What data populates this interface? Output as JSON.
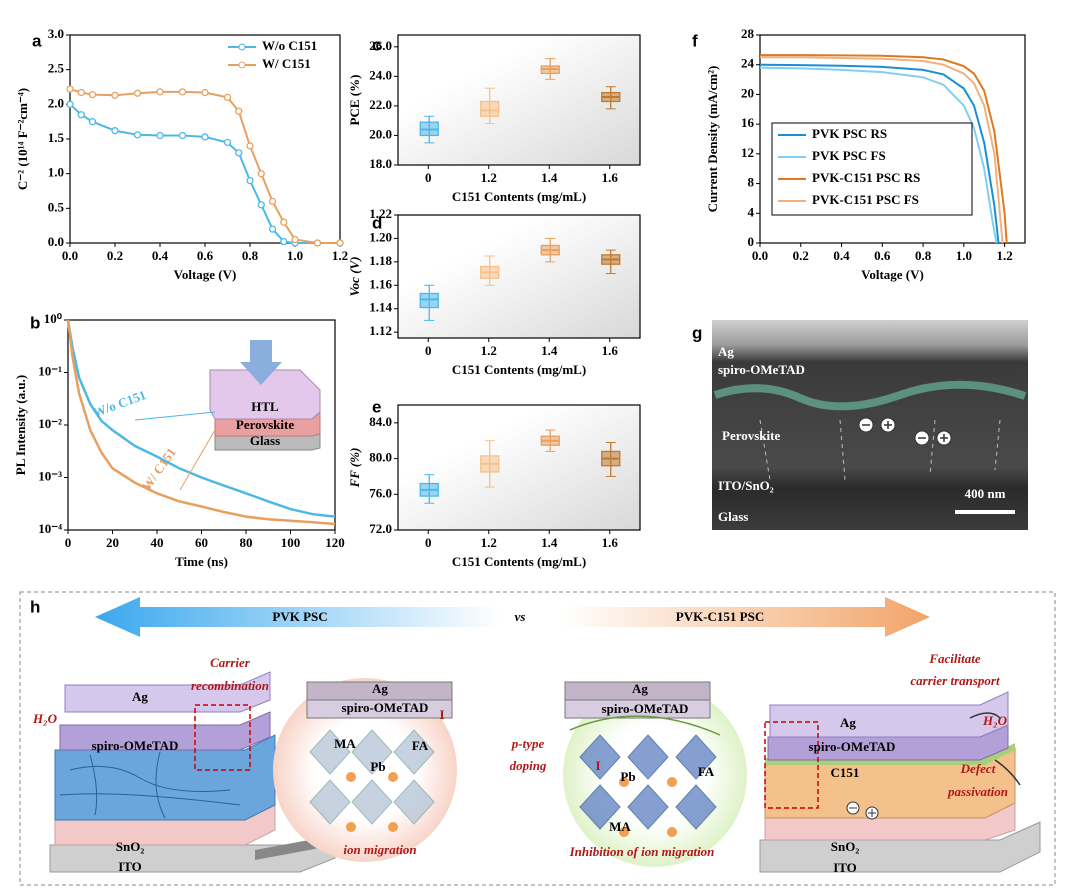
{
  "chart_data": [
    {
      "panel": "a",
      "type": "line",
      "x_label": "Voltage (V)",
      "y_label": "C⁻² (10¹⁴ F⁻²cm⁻⁴)",
      "x": [
        0,
        0.05,
        0.1,
        0.2,
        0.3,
        0.4,
        0.5,
        0.6,
        0.7,
        0.75,
        0.8,
        0.85,
        0.9,
        0.95,
        1.0,
        1.1,
        1.2
      ],
      "series": [
        {
          "name": "W/o C151",
          "color": "#4db8e8",
          "values": [
            2.0,
            1.85,
            1.75,
            1.62,
            1.56,
            1.55,
            1.55,
            1.53,
            1.45,
            1.3,
            0.9,
            0.55,
            0.2,
            0.02,
            0,
            0,
            0
          ]
        },
        {
          "name": "W/   C151",
          "color": "#e8a060",
          "values": [
            2.22,
            2.17,
            2.14,
            2.13,
            2.16,
            2.18,
            2.18,
            2.17,
            2.1,
            1.9,
            1.4,
            1.0,
            0.6,
            0.3,
            0.05,
            0,
            0
          ]
        }
      ],
      "xlim": [
        0,
        1.2
      ],
      "xticks": [
        {
          "value": 0,
          "label": "0.0"
        },
        0.2,
        0.4,
        0.6,
        0.8,
        {
          "value": 1,
          "label": "1.0"
        },
        1.2
      ],
      "ylim": [
        0,
        3
      ],
      "yticks": [
        {
          "value": 0,
          "label": "0.0"
        },
        0.5,
        {
          "value": 1,
          "label": "1.0"
        },
        1.5,
        {
          "value": 2,
          "label": "2.0"
        },
        2.5,
        {
          "value": 3,
          "label": "3.0"
        }
      ],
      "markers": true,
      "legend": "upper right"
    },
    {
      "panel": "b",
      "type": "line",
      "x_label": "Time (ns)",
      "y_label": "PL Intensity (a.u.)",
      "x": [
        0,
        2,
        5,
        10,
        15,
        20,
        30,
        40,
        50,
        60,
        70,
        80,
        90,
        100,
        110,
        120
      ],
      "series": [
        {
          "color": "#4db8e8",
          "values": [
            1,
            0.3,
            0.08,
            0.025,
            0.012,
            0.008,
            0.004,
            0.0025,
            0.0015,
            0.001,
            0.0007,
            0.0005,
            0.00035,
            0.00025,
            0.0002,
            0.00018
          ]
        },
        {
          "color": "#e8a060",
          "values": [
            1,
            0.2,
            0.04,
            0.008,
            0.003,
            0.0015,
            0.0008,
            0.0005,
            0.00035,
            0.00028,
            0.00022,
            0.00018,
            0.00016,
            0.00015,
            0.00014,
            0.00013
          ]
        }
      ],
      "xlim": [
        0,
        120
      ],
      "xticks": [
        0,
        20,
        40,
        60,
        80,
        100,
        120
      ],
      "ylim": [
        0.0001,
        1
      ],
      "log_y": true,
      "yticks": [
        {
          "value": 0.0001,
          "label": "10⁻⁴"
        },
        {
          "value": 0.001,
          "label": "10⁻³"
        },
        {
          "value": 0.01,
          "label": "10⁻²"
        },
        {
          "value": 0.1,
          "label": "10⁻¹"
        },
        {
          "value": 1,
          "label": "10⁰"
        }
      ],
      "annotations": [
        "W/o C151",
        "W/ C151",
        "HTL",
        "Perovskite",
        "Glass"
      ]
    },
    {
      "panel": "c",
      "type": "box",
      "x_label": "C151 Contents (mg/mL)",
      "y_label": "PCE (%)",
      "categories": [
        "0",
        "1.2",
        "1.4",
        "1.6"
      ],
      "colors": [
        "#4db8e8",
        "#f5c08a",
        "#e8a060",
        "#c07a30"
      ],
      "min": [
        19.5,
        20.8,
        23.8,
        21.8
      ],
      "q1": [
        20.0,
        21.3,
        24.2,
        22.3
      ],
      "median": [
        20.4,
        21.7,
        24.5,
        22.6
      ],
      "q3": [
        20.9,
        22.3,
        24.7,
        22.9
      ],
      "max": [
        21.3,
        23.2,
        25.2,
        23.3
      ],
      "ylim": [
        18,
        26.8
      ],
      "yticks": [
        {
          "value": 18,
          "label": "18.0"
        },
        {
          "value": 20,
          "label": "20.0"
        },
        {
          "value": 22,
          "label": "22.0"
        },
        {
          "value": 24,
          "label": "24.0"
        },
        {
          "value": 26,
          "label": "26.0"
        }
      ]
    },
    {
      "panel": "d",
      "type": "box",
      "x_label": "C151 Contents (mg/mL)",
      "y_label": "Voc (V)",
      "categories": [
        "0",
        "1.2",
        "1.4",
        "1.6"
      ],
      "colors": [
        "#4db8e8",
        "#f5c08a",
        "#e8a060",
        "#c07a30"
      ],
      "min": [
        1.13,
        1.16,
        1.18,
        1.17
      ],
      "q1": [
        1.141,
        1.166,
        1.186,
        1.178
      ],
      "median": [
        1.148,
        1.171,
        1.19,
        1.182
      ],
      "q3": [
        1.153,
        1.176,
        1.194,
        1.186
      ],
      "max": [
        1.16,
        1.185,
        1.2,
        1.19
      ],
      "ylim": [
        1.115,
        1.22
      ],
      "yticks": [
        1.12,
        1.14,
        1.16,
        1.18,
        {
          "value": 1.2,
          "label": "1.20"
        },
        1.22
      ]
    },
    {
      "panel": "e",
      "type": "box",
      "x_label": "C151 Contents (mg/mL)",
      "y_label": "FF (%)",
      "categories": [
        "0",
        "1.2",
        "1.4",
        "1.6"
      ],
      "colors": [
        "#4db8e8",
        "#f5c08a",
        "#e8a060",
        "#c07a30"
      ],
      "min": [
        75,
        76.8,
        80.8,
        78
      ],
      "q1": [
        75.8,
        78.5,
        81.5,
        79.2
      ],
      "median": [
        76.5,
        79.4,
        82,
        80
      ],
      "q3": [
        77.2,
        80.3,
        82.5,
        80.8
      ],
      "max": [
        78.2,
        82,
        83.2,
        81.8
      ],
      "ylim": [
        72,
        86
      ],
      "yticks": [
        {
          "value": 72,
          "label": "72.0"
        },
        {
          "value": 76,
          "label": "76.0"
        },
        {
          "value": 80,
          "label": "80.0"
        },
        {
          "value": 84,
          "label": "84.0"
        }
      ]
    },
    {
      "panel": "f",
      "type": "line",
      "x_label": "Voltage (V)",
      "y_label": "Current Density (mA/cm²)",
      "series": [
        {
          "name": "PVK PSC RS",
          "color": "#1a8fd6",
          "x": [
            0,
            0.2,
            0.4,
            0.6,
            0.8,
            0.9,
            1.0,
            1.05,
            1.1,
            1.15,
            1.17
          ],
          "values": [
            24.0,
            23.95,
            23.85,
            23.7,
            23.3,
            22.7,
            20.8,
            18.5,
            13.5,
            5,
            0
          ]
        },
        {
          "name": "PVK PSC FS",
          "color": "#7fd0f0",
          "x": [
            0,
            0.2,
            0.4,
            0.6,
            0.8,
            0.9,
            1.0,
            1.05,
            1.1,
            1.14,
            1.16
          ],
          "values": [
            23.6,
            23.5,
            23.3,
            23.0,
            22.3,
            21.3,
            18.5,
            15.5,
            10,
            3,
            0
          ]
        },
        {
          "name": "PVK-C151 PSC RS",
          "color": "#e07820",
          "x": [
            0,
            0.2,
            0.4,
            0.6,
            0.8,
            0.9,
            1.0,
            1.05,
            1.1,
            1.15,
            1.2,
            1.21
          ],
          "values": [
            25.3,
            25.3,
            25.25,
            25.2,
            25.0,
            24.7,
            23.8,
            22.8,
            20.5,
            15,
            4,
            0
          ]
        },
        {
          "name": "PVK-C151 PSC FS",
          "color": "#f0b080",
          "x": [
            0,
            0.2,
            0.4,
            0.6,
            0.8,
            0.9,
            1.0,
            1.05,
            1.1,
            1.15,
            1.19
          ],
          "values": [
            25.0,
            25.0,
            24.9,
            24.8,
            24.5,
            24.0,
            22.8,
            21.5,
            18.5,
            12,
            0
          ]
        }
      ],
      "xlim": [
        0,
        1.3
      ],
      "xticks": [
        {
          "value": 0,
          "label": "0.0"
        },
        0.2,
        0.4,
        0.6,
        0.8,
        {
          "value": 1,
          "label": "1.0"
        },
        1.2
      ],
      "ylim": [
        0,
        28
      ],
      "yticks": [
        0,
        4,
        8,
        12,
        16,
        20,
        24,
        28
      ],
      "legend": "lower left",
      "legend_frame": true
    }
  ],
  "micrograph": {
    "panel": "g",
    "labels": [
      "Ag",
      "spiro-OMeTAD",
      "Perovskite",
      "ITO/SnO₂",
      "Glass"
    ],
    "scale_bar": "400 nm"
  },
  "schematic": {
    "panel": "h",
    "left_title": "PVK PSC",
    "vs": "vs",
    "right_title": "PVK-C151 PSC",
    "labels": [
      "Carrier",
      "recombination",
      "H₂O",
      "Ag",
      "spiro-OMeTAD",
      "SnO₂",
      "ITO",
      "Ag",
      "spiro-OMeTAD",
      "MA",
      "Pb",
      "FA",
      "I",
      "ion migration",
      "Ag",
      "spiro-OMeTAD",
      "p-type",
      "doping",
      "I",
      "Pb",
      "FA",
      "MA",
      "Inhibition of ion migration",
      "Facilitate",
      "carrier transport",
      "H₂O",
      "Ag",
      "spiro-OMeTAD",
      "C151",
      "Defect",
      "passivation",
      "SnO₂",
      "ITO"
    ]
  }
}
